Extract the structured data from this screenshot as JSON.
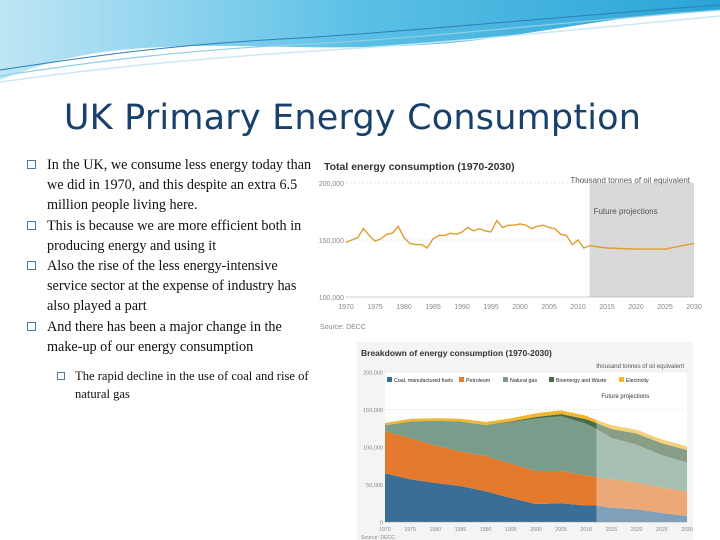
{
  "slide": {
    "title": "UK Primary Energy Consumption",
    "bullets": [
      "In the UK, we consume less energy today than we did in 1970, and this despite an extra 6.5 million people living here.",
      "This is because we are more efficient both in producing energy and using it",
      "Also the rise of the less energy-intensive service sector at the expense of industry has also played a part",
      "And there has been a major change in the make-up of our energy consumption"
    ],
    "subbullet": "The rapid decline in the use of coal and rise of natural gas"
  },
  "chart_data": [
    {
      "type": "line",
      "title": "Total energy consumption (1970-2030)",
      "unit_label": "Thousand tonnes of oil equivalent",
      "annotation": "Future projections",
      "source": "Source: DECC",
      "x_ticks": [
        "1970",
        "1975",
        "1980",
        "1985",
        "1990",
        "1995",
        "2000",
        "2005",
        "2010",
        "2015",
        "2020",
        "2025",
        "2030"
      ],
      "y_ticks": [
        "100,000",
        "150,000",
        "200,000"
      ],
      "ylim": [
        100000,
        200000
      ],
      "projection_start": 2012,
      "series": [
        {
          "x": [
            1970,
            1971,
            1972,
            1973,
            1974,
            1975,
            1976,
            1977,
            1978,
            1979,
            1980,
            1981,
            1982,
            1983,
            1984,
            1985,
            1986,
            1987,
            1988,
            1989,
            1990,
            1991,
            1992,
            1993,
            1994,
            1995,
            1996,
            1997,
            1998,
            1999,
            2000,
            2001,
            2002,
            2003,
            2004,
            2005,
            2006,
            2007,
            2008,
            2009,
            2010,
            2011,
            2012,
            2015,
            2020,
            2025,
            2030
          ],
          "values": [
            148000,
            150000,
            152000,
            160000,
            154000,
            149000,
            151000,
            155000,
            156000,
            162000,
            152000,
            147000,
            146000,
            146000,
            143000,
            151000,
            154000,
            154000,
            156000,
            155000,
            157000,
            161000,
            158000,
            160000,
            158000,
            157000,
            167000,
            161000,
            163000,
            163000,
            164000,
            163000,
            160000,
            162000,
            163000,
            161000,
            160000,
            155000,
            154000,
            146000,
            150000,
            143000,
            145000,
            143000,
            142000,
            142000,
            147000
          ]
        }
      ],
      "line_color": "#e39b2c"
    },
    {
      "type": "area",
      "title": "Breakdown of energy consumption (1970-2030)",
      "unit_label": "thousand tonnes of oil equivalent",
      "annotation": "Future projections",
      "source": "Source: DECC",
      "x": [
        1970,
        1975,
        1980,
        1985,
        1990,
        1995,
        2000,
        2005,
        2010,
        2012,
        2015,
        2020,
        2025,
        2030
      ],
      "x_ticks": [
        "1970",
        "1975",
        "1980",
        "1985",
        "1990",
        "1995",
        "2000",
        "2005",
        "2010",
        "2015",
        "2020",
        "2025",
        "2030"
      ],
      "y_ticks": [
        "0",
        "50,000",
        "100,000",
        "150,000",
        "200,000"
      ],
      "ylim": [
        0,
        200000
      ],
      "projection_start": 2012,
      "series": [
        {
          "name": "Coal, manufactured fuels",
          "color": "#3a6e97",
          "values": [
            65000,
            57000,
            52000,
            48000,
            41000,
            32000,
            24000,
            25000,
            22000,
            22000,
            19000,
            17000,
            12000,
            8000
          ]
        },
        {
          "name": "Petroleum",
          "color": "#e47a2e",
          "values": [
            56000,
            55000,
            50000,
            46000,
            47000,
            46000,
            44000,
            43000,
            40000,
            38000,
            38000,
            36000,
            34000,
            33000
          ]
        },
        {
          "name": "Natural gas",
          "color": "#7a9d8b",
          "values": [
            8000,
            22000,
            33000,
            40000,
            41000,
            55000,
            70000,
            73000,
            69000,
            64000,
            55000,
            50000,
            43000,
            38000
          ]
        },
        {
          "name": "Bioenergy and Waste",
          "color": "#4a6b47",
          "values": [
            0,
            0,
            0,
            0,
            300,
            1000,
            2000,
            3000,
            6000,
            8000,
            12000,
            15000,
            16000,
            17000
          ]
        },
        {
          "name": "Electricity",
          "color": "#f2b52e",
          "values": [
            3000,
            3500,
            3300,
            3800,
            4000,
            4200,
            5000,
            4800,
            4600,
            4000,
            5000,
            5000,
            5000,
            5000
          ]
        }
      ]
    }
  ]
}
